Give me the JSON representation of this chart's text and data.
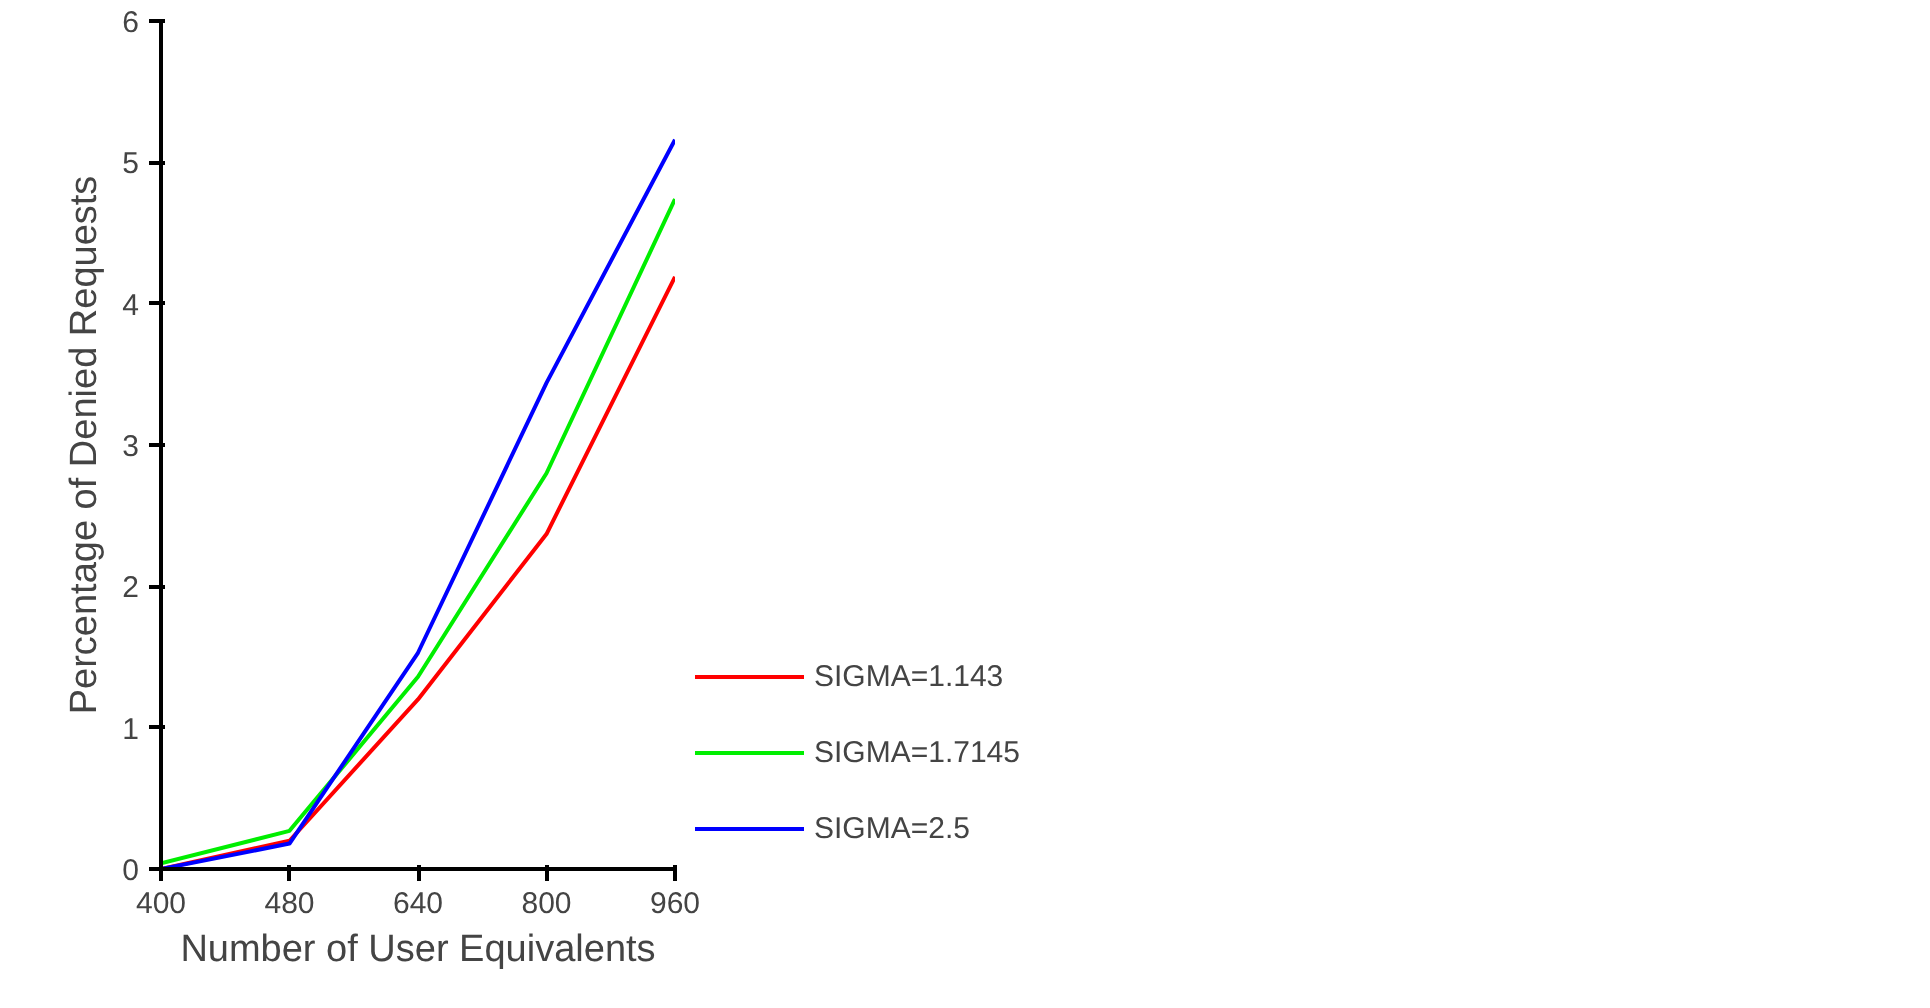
{
  "chart_data": {
    "type": "line",
    "xlabel": "Number of User Equivalents",
    "ylabel": "Percentage of Denied Requests",
    "categories": [
      "400",
      "480",
      "640",
      "800",
      "960"
    ],
    "ylim": [
      0,
      6
    ],
    "yticks": [
      0,
      1,
      2,
      3,
      4,
      5,
      6
    ],
    "grid": false,
    "legend": "right",
    "marker": "none",
    "line_style": "solid",
    "series": [
      {
        "name": "SIGMA=1.143",
        "color": "#ff0000",
        "values": [
          0.0,
          0.2,
          1.2,
          2.37,
          4.19
        ]
      },
      {
        "name": "SIGMA=1.7145",
        "color": "#00ee00",
        "values": [
          0.04,
          0.27,
          1.36,
          2.8,
          4.74
        ]
      },
      {
        "name": "SIGMA=2.5",
        "color": "#0000ff",
        "values": [
          0.0,
          0.18,
          1.53,
          3.44,
          5.16
        ]
      }
    ]
  }
}
